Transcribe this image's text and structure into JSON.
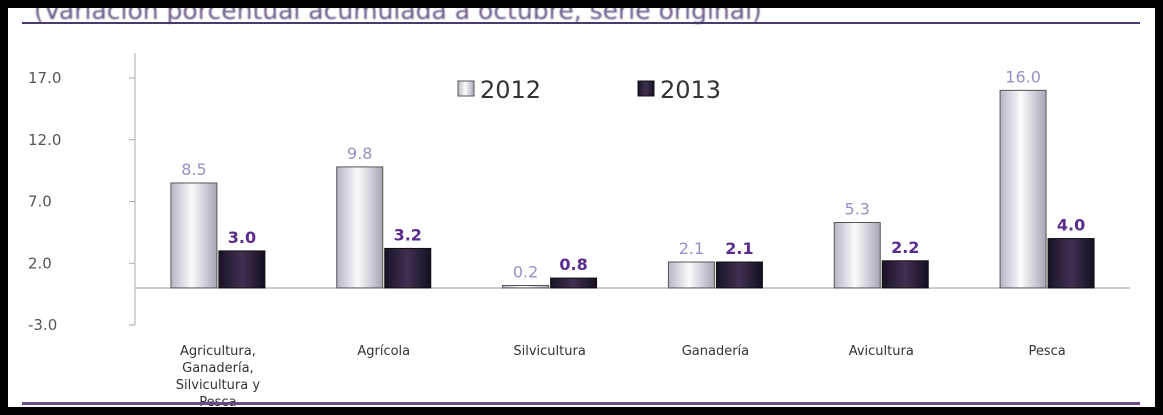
{
  "subtitle": "(Variación porcentual acumulada a octubre, serie original)",
  "chart_data": {
    "type": "bar",
    "categories": [
      [
        "Agricultura,",
        "Ganadería,",
        "Silvicultura y",
        "Pesca"
      ],
      [
        "Agrícola"
      ],
      [
        "Silvicultura"
      ],
      [
        "Ganadería"
      ],
      [
        "Avicultura"
      ],
      [
        "Pesca"
      ]
    ],
    "series": [
      {
        "name": "2012",
        "values": [
          8.5,
          9.8,
          0.2,
          2.1,
          5.3,
          16.0
        ],
        "labels": [
          "8.5",
          "9.8",
          "0.2",
          "2.1",
          "5.3",
          "16.0"
        ]
      },
      {
        "name": "2013",
        "values": [
          3.0,
          3.2,
          0.8,
          2.1,
          2.2,
          4.0
        ],
        "labels": [
          "3.0",
          "3.2",
          "0.8",
          "2.1",
          "2.2",
          "4.0"
        ]
      }
    ],
    "yticks": [
      "17.0",
      "12.0",
      "7.0",
      "2.0",
      "-3.0"
    ],
    "ylim": [
      -3.0,
      17.0
    ],
    "legend_position": "top-center",
    "colors": {
      "2012": "#e8e6ee",
      "2013": "#2a1e3a",
      "label2012": "#9c8fc4",
      "label2013": "#5a2d8c",
      "rule": "#4a3a6e"
    }
  }
}
